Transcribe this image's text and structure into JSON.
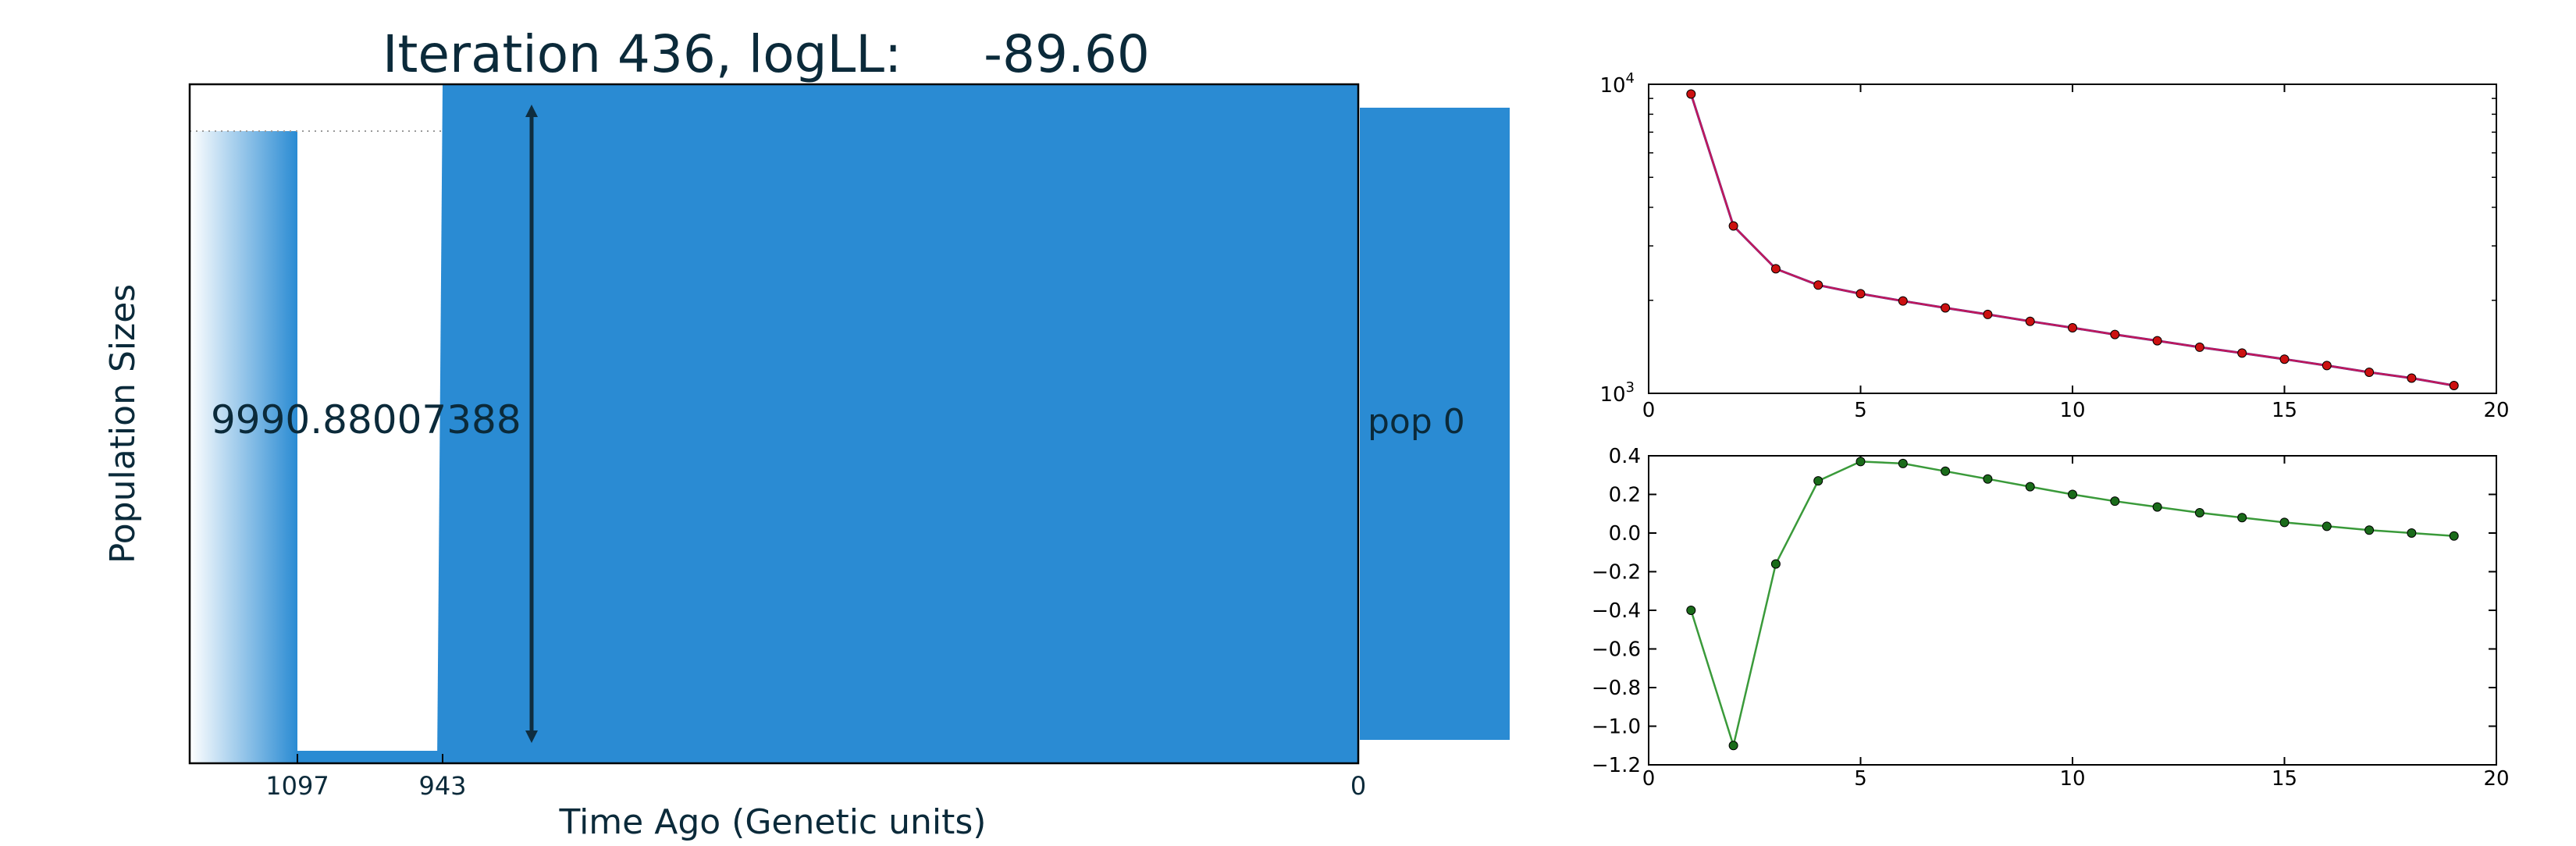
{
  "colors": {
    "text": "#0b2a3a",
    "blue": "#2a8bd3",
    "blue_dark": "#1f7fcf",
    "light_blue": "#e3f1fb",
    "arrow": "#0f2d3f",
    "red_line": "#c2185b",
    "red_dot": "#cc1111",
    "green_line": "#3a9a3a",
    "green_dot": "#1a6b1a"
  },
  "main": {
    "title": "Iteration 436, logLL:     -89.60",
    "ylabel": "Population Sizes",
    "xlabel": "Time Ago (Genetic units)",
    "size_label": "9990.88007388",
    "pop_label": "pop 0",
    "time_ticks": [
      "1097",
      "943",
      "0"
    ]
  },
  "chart_data": [
    {
      "type": "line",
      "title": "",
      "xlabel": "",
      "ylabel": "",
      "yscale": "log",
      "xlim": [
        0,
        20
      ],
      "ylim": [
        1000,
        10000
      ],
      "xticks": [
        "0",
        "5",
        "10",
        "15",
        "20"
      ],
      "yticks": [
        "10^4",
        "10^3"
      ],
      "series": [
        {
          "x": [
            1,
            2,
            3,
            4,
            5,
            6,
            7,
            8,
            9,
            10,
            11,
            12,
            13,
            14,
            15,
            16,
            17,
            18,
            19
          ],
          "values": [
            9300,
            3480,
            2530,
            2240,
            2100,
            1990,
            1890,
            1800,
            1710,
            1630,
            1550,
            1480,
            1410,
            1350,
            1290,
            1230,
            1170,
            1120,
            1060
          ]
        }
      ]
    },
    {
      "type": "line",
      "title": "",
      "xlabel": "",
      "ylabel": "",
      "xlim": [
        0,
        20
      ],
      "ylim": [
        -1.2,
        0.4
      ],
      "xticks": [
        "0",
        "5",
        "10",
        "15",
        "20"
      ],
      "yticks": [
        "0.4",
        "0.2",
        "0.0",
        "−0.2",
        "−0.4",
        "−0.6",
        "−0.8",
        "−1.0",
        "−1.2"
      ],
      "series": [
        {
          "x": [
            1,
            2,
            3,
            4,
            5,
            6,
            7,
            8,
            9,
            10,
            11,
            12,
            13,
            14,
            15,
            16,
            17,
            18,
            19
          ],
          "values": [
            -0.4,
            -1.1,
            -0.16,
            0.27,
            0.37,
            0.36,
            0.32,
            0.28,
            0.24,
            0.2,
            0.165,
            0.135,
            0.105,
            0.08,
            0.055,
            0.035,
            0.015,
            0.0,
            -0.015
          ]
        }
      ]
    }
  ]
}
